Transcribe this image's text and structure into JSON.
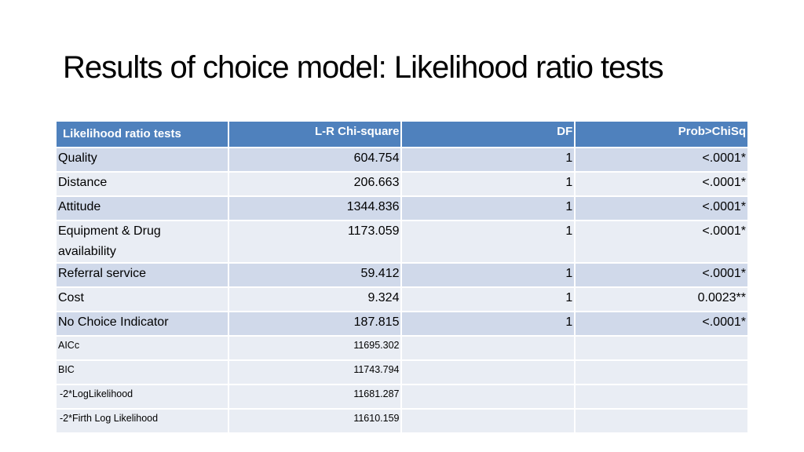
{
  "slide": {
    "title": "Results of choice model: Likelihood ratio tests"
  },
  "table": {
    "headers": [
      "Likelihood ratio tests",
      "L-R Chi-square",
      "DF",
      "Prob>ChiSq"
    ],
    "rows": [
      {
        "name": "Quality",
        "chi_square": "604.754",
        "df": "1",
        "prob": "<.0001*"
      },
      {
        "name": "Distance",
        "chi_square": "206.663",
        "df": "1",
        "prob": "<.0001*"
      },
      {
        "name": "Attitude",
        "chi_square": "1344.836",
        "df": "1",
        "prob": "<.0001*"
      },
      {
        "name_line1": "Equipment & Drug",
        "name_line2": "availability",
        "chi_square": "1173.059",
        "df": "1",
        "prob": "<.0001*"
      },
      {
        "name": "Referral service",
        "chi_square": "59.412",
        "df": "1",
        "prob": "<.0001*"
      },
      {
        "name": "Cost",
        "chi_square": "9.324",
        "df": "1",
        "prob": "0.0023**"
      },
      {
        "name": "No Choice Indicator",
        "chi_square": "187.815",
        "df": "1",
        "prob": "<.0001*"
      }
    ],
    "fit_stats": [
      {
        "name": "AICc",
        "value": "11695.302"
      },
      {
        "name": "BIC",
        "value": "11743.794"
      },
      {
        "name": "-2*LogLikelihood",
        "value": "11681.287"
      },
      {
        "name": "-2*Firth Log Likelihood",
        "value": "11610.159"
      }
    ]
  },
  "colors": {
    "header_bg": "#4f81bd",
    "row_dark": "#d0d9ea",
    "row_light": "#e9edf4"
  }
}
